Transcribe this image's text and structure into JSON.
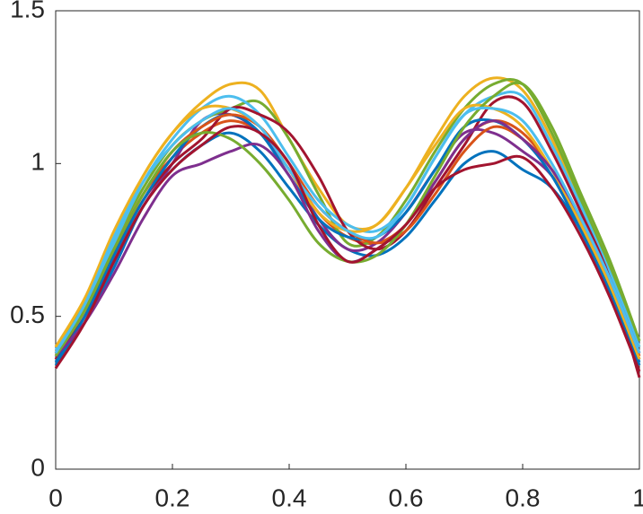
{
  "chart_data": {
    "type": "line",
    "x": [
      0,
      0.05,
      0.1,
      0.15,
      0.2,
      0.25,
      0.3,
      0.35,
      0.4,
      0.45,
      0.5,
      0.55,
      0.6,
      0.65,
      0.7,
      0.75,
      0.8,
      0.85,
      0.9,
      0.95,
      1
    ],
    "series": [
      {
        "color": "#0072BD",
        "values": [
          0.34,
          0.48,
          0.66,
          0.86,
          0.98,
          1.06,
          1.1,
          1.04,
          0.92,
          0.8,
          0.72,
          0.7,
          0.76,
          0.88,
          1.0,
          1.04,
          0.98,
          0.92,
          0.78,
          0.58,
          0.34
        ]
      },
      {
        "color": "#D95319",
        "values": [
          0.38,
          0.52,
          0.72,
          0.9,
          1.02,
          1.1,
          1.14,
          1.1,
          0.98,
          0.84,
          0.76,
          0.74,
          0.8,
          0.94,
          1.08,
          1.14,
          1.1,
          0.98,
          0.8,
          0.6,
          0.36
        ]
      },
      {
        "color": "#EDB120",
        "values": [
          0.4,
          0.55,
          0.76,
          0.96,
          1.1,
          1.2,
          1.26,
          1.24,
          1.08,
          0.92,
          0.8,
          0.8,
          0.92,
          1.08,
          1.22,
          1.28,
          1.24,
          1.08,
          0.86,
          0.64,
          0.4
        ]
      },
      {
        "color": "#7E2F8E",
        "values": [
          0.36,
          0.5,
          0.68,
          0.86,
          1.0,
          1.14,
          1.16,
          1.1,
          0.98,
          0.82,
          0.72,
          0.74,
          0.84,
          0.98,
          1.1,
          1.1,
          1.04,
          0.96,
          0.8,
          0.6,
          0.38
        ]
      },
      {
        "color": "#77AC30",
        "values": [
          0.38,
          0.54,
          0.74,
          0.92,
          1.06,
          1.14,
          1.18,
          1.2,
          1.08,
          0.9,
          0.74,
          0.76,
          0.88,
          1.04,
          1.18,
          1.26,
          1.26,
          1.1,
          0.88,
          0.66,
          0.42
        ]
      },
      {
        "color": "#4DBEEE",
        "values": [
          0.39,
          0.53,
          0.74,
          0.94,
          1.08,
          1.18,
          1.22,
          1.16,
          1.02,
          0.88,
          0.8,
          0.78,
          0.86,
          1.02,
          1.16,
          1.22,
          1.22,
          1.06,
          0.86,
          0.64,
          0.4
        ]
      },
      {
        "color": "#A2142F",
        "values": [
          0.36,
          0.5,
          0.7,
          0.88,
          1.0,
          1.08,
          1.18,
          1.16,
          1.1,
          0.96,
          0.78,
          0.72,
          0.78,
          0.92,
          1.06,
          1.2,
          1.2,
          1.04,
          0.84,
          0.62,
          0.3
        ]
      },
      {
        "color": "#0072BD",
        "values": [
          0.35,
          0.5,
          0.7,
          0.88,
          1.02,
          1.12,
          1.16,
          1.1,
          0.96,
          0.82,
          0.76,
          0.76,
          0.84,
          0.98,
          1.12,
          1.14,
          1.08,
          0.96,
          0.78,
          0.58,
          0.35
        ]
      },
      {
        "color": "#D95319",
        "values": [
          0.37,
          0.52,
          0.72,
          0.9,
          1.04,
          1.12,
          1.16,
          1.12,
          1.0,
          0.86,
          0.78,
          0.74,
          0.78,
          0.9,
          1.04,
          1.12,
          1.08,
          0.98,
          0.82,
          0.62,
          0.37
        ]
      },
      {
        "color": "#EDB120",
        "values": [
          0.4,
          0.56,
          0.78,
          0.96,
          1.1,
          1.18,
          1.18,
          1.12,
          0.98,
          0.84,
          0.78,
          0.8,
          0.92,
          1.06,
          1.18,
          1.18,
          1.12,
          0.98,
          0.8,
          0.6,
          0.36
        ]
      },
      {
        "color": "#7E2F8E",
        "values": [
          0.37,
          0.48,
          0.64,
          0.82,
          0.96,
          1.0,
          1.04,
          1.06,
          0.96,
          0.78,
          0.68,
          0.72,
          0.8,
          0.94,
          1.08,
          1.14,
          1.08,
          0.98,
          0.82,
          0.62,
          0.38
        ]
      },
      {
        "color": "#77AC30",
        "values": [
          0.37,
          0.52,
          0.72,
          0.9,
          1.04,
          1.1,
          1.08,
          1.0,
          0.88,
          0.74,
          0.68,
          0.7,
          0.8,
          0.96,
          1.12,
          1.22,
          1.26,
          1.12,
          0.9,
          0.68,
          0.42
        ]
      },
      {
        "color": "#4DBEEE",
        "values": [
          0.38,
          0.54,
          0.76,
          0.94,
          1.06,
          1.14,
          1.18,
          1.12,
          0.98,
          0.86,
          0.78,
          0.76,
          0.86,
          1.02,
          1.16,
          1.18,
          1.14,
          1.0,
          0.82,
          0.62,
          0.38
        ]
      },
      {
        "color": "#A2142F",
        "values": [
          0.33,
          0.48,
          0.68,
          0.86,
          0.98,
          1.06,
          1.12,
          1.1,
          1.0,
          0.8,
          0.68,
          0.72,
          0.8,
          0.92,
          0.98,
          1.0,
          1.02,
          0.92,
          0.76,
          0.56,
          0.32
        ]
      }
    ],
    "xlim": [
      0,
      1
    ],
    "xticks": [
      0,
      0.2,
      0.4,
      0.6,
      0.8,
      1
    ],
    "ylim": [
      0,
      1.5
    ],
    "yticks": [
      0,
      0.5,
      1,
      1.5
    ]
  }
}
